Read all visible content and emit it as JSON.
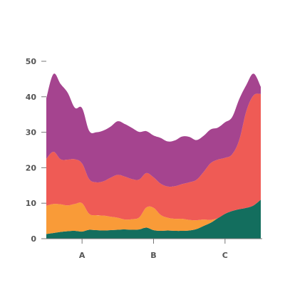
{
  "chart_data": {
    "type": "area",
    "stacked": true,
    "title": "",
    "xlabel": "",
    "ylabel": "",
    "ylim": [
      0,
      50
    ],
    "yticks": [
      0,
      10,
      20,
      30,
      40,
      50
    ],
    "ytick_labels": [
      "0",
      "10",
      "20",
      "30",
      "40",
      "50"
    ],
    "x_categories": [
      "A",
      "B",
      "C"
    ],
    "x_category_positions": [
      0.5,
      1.5,
      2.5
    ],
    "xlim": [
      0,
      3
    ],
    "grid": false,
    "legend": "none",
    "colors": [
      "#136e5e",
      "#f99b38",
      "#ef5b55",
      "#a5448f"
    ],
    "x": [
      0,
      0.1,
      0.2,
      0.3,
      0.4,
      0.5,
      0.6,
      0.7,
      0.8,
      0.9,
      1.0,
      1.1,
      1.2,
      1.3,
      1.4,
      1.5,
      1.6,
      1.7,
      1.8,
      1.9,
      2.0,
      2.1,
      2.2,
      2.3,
      2.4,
      2.5,
      2.6,
      2.7,
      2.8,
      2.9,
      3.0
    ],
    "series": [
      {
        "values": [
          1.3,
          1.6,
          1.9,
          2.1,
          2.2,
          2.0,
          2.5,
          2.4,
          2.3,
          2.4,
          2.5,
          2.6,
          2.5,
          2.6,
          3.1,
          2.4,
          2.2,
          2.3,
          2.2,
          2.2,
          2.3,
          2.7,
          3.6,
          4.5,
          5.8,
          7.0,
          7.8,
          8.3,
          8.7,
          9.4,
          11.0
        ]
      },
      {
        "values": [
          8.0,
          8.2,
          7.8,
          7.3,
          7.6,
          8.0,
          4.5,
          4.2,
          4.2,
          3.8,
          3.4,
          2.8,
          3.0,
          3.4,
          5.7,
          6.3,
          4.5,
          3.6,
          3.4,
          3.4,
          3.0,
          2.5,
          1.8,
          0.8,
          0.0,
          0.0,
          0.0,
          0.0,
          0.0,
          0.0,
          0.0
        ]
      },
      {
        "values": [
          13.2,
          14.7,
          12.7,
          12.9,
          12.6,
          11.2,
          9.8,
          9.3,
          9.7,
          11.0,
          12.1,
          12.1,
          11.3,
          10.7,
          9.7,
          8.6,
          8.8,
          8.8,
          9.2,
          9.8,
          10.6,
          11.4,
          13.4,
          16.0,
          16.5,
          15.8,
          16.0,
          19.6,
          27.4,
          31.0,
          29.8
        ]
      },
      {
        "values": [
          17.1,
          21.9,
          21.2,
          18.8,
          14.5,
          15.6,
          13.6,
          14.1,
          14.3,
          14.4,
          15.1,
          14.8,
          14.4,
          13.4,
          11.8,
          11.8,
          12.9,
          12.7,
          12.9,
          13.4,
          12.8,
          11.2,
          10.2,
          9.5,
          9.0,
          10.0,
          10.5,
          11.5,
          7.3,
          6.1,
          2.0
        ]
      }
    ]
  }
}
